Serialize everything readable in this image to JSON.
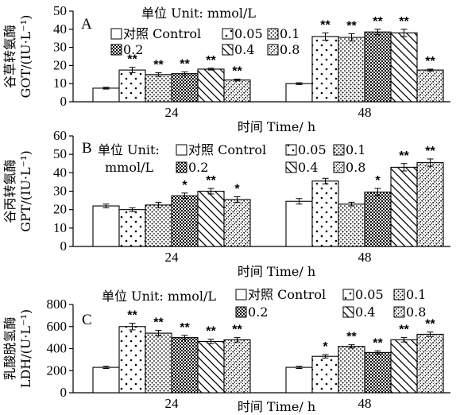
{
  "chart_data": [
    {
      "type": "bar",
      "panel_label": "A",
      "ylabel_line1": "谷草转氨酶",
      "ylabel_line2": "GOT/(IU·L⁻¹)",
      "xlabel": "时间 Time/ h",
      "categories": [
        "24",
        "48"
      ],
      "ylim": [
        0,
        50
      ],
      "yticks": [
        0,
        10,
        20,
        30,
        40,
        50
      ],
      "legend_title": "单位 Unit: mmol/L",
      "series": [
        {
          "name": "对照 Control",
          "pattern": "blank",
          "values": [
            7.5,
            10
          ],
          "errors": [
            0.5,
            0.5
          ],
          "sig": [
            "",
            ""
          ]
        },
        {
          "name": "0.05",
          "pattern": "dots-sparse",
          "values": [
            17.5,
            36
          ],
          "errors": [
            1.5,
            2
          ],
          "sig": [
            "**",
            "**"
          ]
        },
        {
          "name": "0.1",
          "pattern": "dots-dense",
          "values": [
            15,
            35.5
          ],
          "errors": [
            1,
            2
          ],
          "sig": [
            "**",
            "**"
          ]
        },
        {
          "name": "0.2",
          "pattern": "checker",
          "values": [
            15.5,
            38.5
          ],
          "errors": [
            1,
            1.5
          ],
          "sig": [
            "**",
            "**"
          ]
        },
        {
          "name": "0.4",
          "pattern": "diag-lines",
          "values": [
            18,
            38
          ],
          "errors": [
            0.5,
            2
          ],
          "sig": [
            "**",
            "**"
          ]
        },
        {
          "name": "0.8",
          "pattern": "diag-dotted",
          "values": [
            12,
            17.5
          ],
          "errors": [
            0.5,
            0.5
          ],
          "sig": [
            "**",
            "**"
          ]
        }
      ]
    },
    {
      "type": "bar",
      "panel_label": "B",
      "ylabel_line1": "谷丙转氨酶",
      "ylabel_line2": "GPT/(IU·L⁻¹)",
      "xlabel": "时间 Time/ h",
      "categories": [
        "24",
        "48"
      ],
      "ylim": [
        0,
        60
      ],
      "yticks": [
        0,
        10,
        20,
        30,
        40,
        50,
        60
      ],
      "legend_title": "单位 Unit:",
      "legend_unit": "mmol/L",
      "series": [
        {
          "name": "对照 Control",
          "pattern": "blank",
          "values": [
            22,
            24.5
          ],
          "errors": [
            1,
            1.5
          ],
          "sig": [
            "",
            ""
          ]
        },
        {
          "name": "0.05",
          "pattern": "dots-sparse",
          "values": [
            20,
            35.5
          ],
          "errors": [
            1,
            1.5
          ],
          "sig": [
            "",
            ""
          ]
        },
        {
          "name": "0.1",
          "pattern": "dots-dense",
          "values": [
            22.5,
            23
          ],
          "errors": [
            1.5,
            1
          ],
          "sig": [
            "",
            ""
          ]
        },
        {
          "name": "0.2",
          "pattern": "checker",
          "values": [
            27.5,
            29.5
          ],
          "errors": [
            1.5,
            2
          ],
          "sig": [
            "*",
            "*"
          ]
        },
        {
          "name": "0.4",
          "pattern": "diag-lines",
          "values": [
            30,
            43
          ],
          "errors": [
            1.5,
            2
          ],
          "sig": [
            "**",
            "**"
          ]
        },
        {
          "name": "0.8",
          "pattern": "diag-dotted",
          "values": [
            25.5,
            45.5
          ],
          "errors": [
            1.5,
            2
          ],
          "sig": [
            "*",
            "**"
          ]
        }
      ]
    },
    {
      "type": "bar",
      "panel_label": "C",
      "ylabel_line1": "乳酸脱氢酶",
      "ylabel_line2": "LDH/(U·L⁻¹)",
      "xlabel": "时间 Time/ h",
      "categories": [
        "24",
        "48"
      ],
      "ylim": [
        0,
        800
      ],
      "yticks": [
        0,
        200,
        400,
        600,
        800
      ],
      "legend_title": "单位 Unit: mmol/L",
      "series": [
        {
          "name": "对照 Control",
          "pattern": "blank",
          "values": [
            230,
            230
          ],
          "errors": [
            10,
            10
          ],
          "sig": [
            "",
            ""
          ]
        },
        {
          "name": "0.05",
          "pattern": "dots-sparse",
          "values": [
            600,
            330
          ],
          "errors": [
            30,
            15
          ],
          "sig": [
            "**",
            "*"
          ]
        },
        {
          "name": "0.1",
          "pattern": "dots-dense",
          "values": [
            540,
            420
          ],
          "errors": [
            25,
            15
          ],
          "sig": [
            "**",
            "**"
          ]
        },
        {
          "name": "0.2",
          "pattern": "checker",
          "values": [
            500,
            365
          ],
          "errors": [
            20,
            15
          ],
          "sig": [
            "**",
            "**"
          ]
        },
        {
          "name": "0.4",
          "pattern": "diag-lines",
          "values": [
            465,
            480
          ],
          "errors": [
            20,
            20
          ],
          "sig": [
            "**",
            "**"
          ]
        },
        {
          "name": "0.8",
          "pattern": "diag-dotted",
          "values": [
            480,
            530
          ],
          "errors": [
            20,
            20
          ],
          "sig": [
            "**",
            "**"
          ]
        }
      ]
    }
  ]
}
